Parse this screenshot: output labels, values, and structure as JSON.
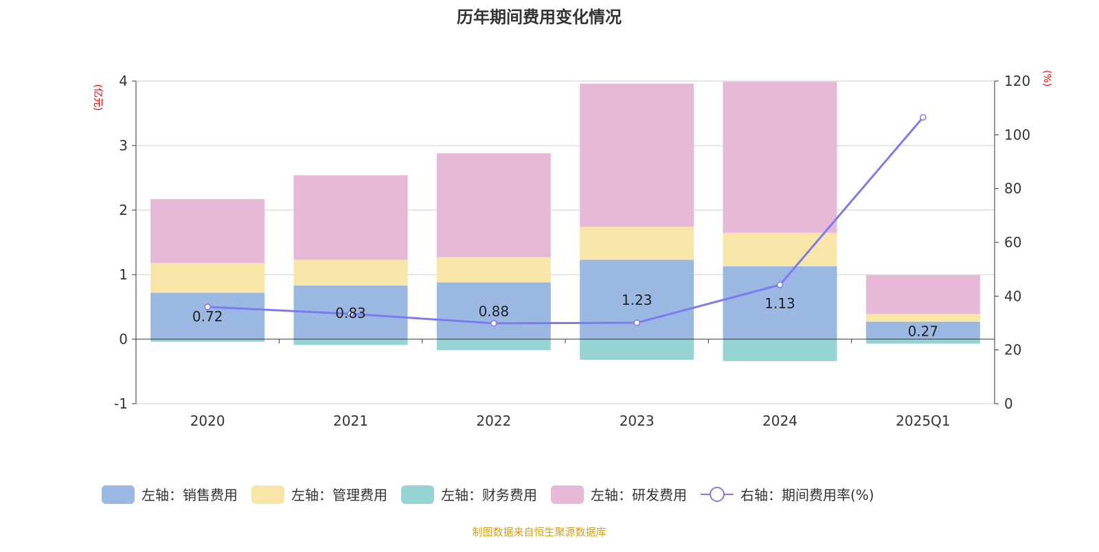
{
  "chart_data": {
    "type": "bar",
    "title": "历年期间费用变化情况",
    "left_axis_unit": "(亿元)",
    "right_axis_unit": "(%)",
    "categories": [
      "2020",
      "2021",
      "2022",
      "2023",
      "2024",
      "2025Q1"
    ],
    "ylim_left": [
      -1,
      4
    ],
    "yticks_left": [
      "-1",
      "0",
      "1",
      "2",
      "3",
      "4"
    ],
    "ylim_right": [
      0,
      120
    ],
    "yticks_right": [
      "0",
      "20",
      "40",
      "60",
      "80",
      "100",
      "120"
    ],
    "series": [
      {
        "name": "左轴：销售费用",
        "type": "bar",
        "color": "#9bb8e2",
        "values": [
          0.72,
          0.83,
          0.88,
          1.23,
          1.13,
          0.27
        ],
        "labels": [
          "0.72",
          "0.83",
          "0.88",
          "1.23",
          "1.13",
          "0.27"
        ]
      },
      {
        "name": "左轴：管理费用",
        "type": "bar",
        "color": "#f8e6a8",
        "values": [
          0.46,
          0.4,
          0.39,
          0.51,
          0.52,
          0.12
        ]
      },
      {
        "name": "左轴：财务费用",
        "type": "bar",
        "color": "#96d4d4",
        "values": [
          -0.04,
          -0.09,
          -0.17,
          -0.32,
          -0.34,
          -0.07
        ]
      },
      {
        "name": "左轴：研发费用",
        "type": "bar",
        "color": "#e7b8d8",
        "values": [
          0.99,
          1.31,
          1.61,
          2.22,
          2.34,
          0.6
        ]
      },
      {
        "name": "右轴：期间费用率(%)",
        "type": "line",
        "color": "#7b7bf0",
        "values": [
          36.0,
          33.4,
          29.9,
          30.1,
          44.2,
          106.5
        ]
      }
    ],
    "legend_position": "bottom",
    "source": "制图数据来自恒生聚源数据库"
  }
}
